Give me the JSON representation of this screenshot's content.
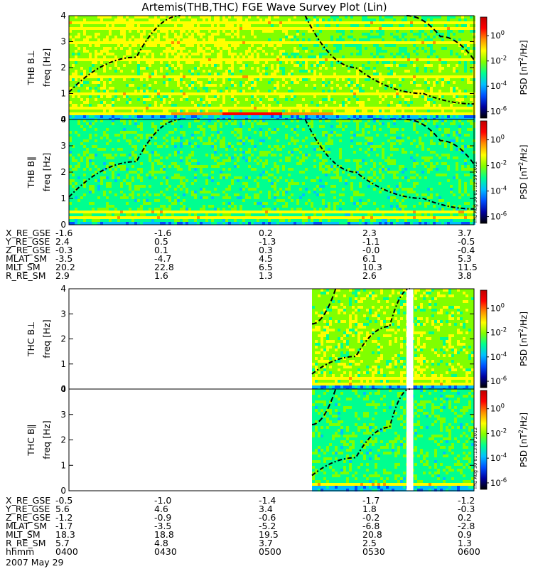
{
  "title": "Artemis(THB,THC) FGE Wave Survey Plot (Lin)",
  "date": "2007 May 29",
  "colors": {
    "background": "#ffffff",
    "curve": "#000000",
    "gap": "#ffffff"
  },
  "colorbar": {
    "label_prefix": "PSD ",
    "label_units": "[nT",
    "label_units_sup": "2",
    "label_units_tail": "/Hz]",
    "ticks": [
      {
        "base": "10",
        "exp": "0",
        "value": 1
      },
      {
        "base": "10",
        "exp": "-2",
        "value": 0.01
      },
      {
        "base": "10",
        "exp": "-4",
        "value": 0.0001
      },
      {
        "base": "10",
        "exp": "-6",
        "value": 1e-06
      }
    ],
    "scale": "log",
    "range": [
      3e-07,
      30
    ],
    "colormap": [
      "#000000",
      "#0000a0",
      "#0050ff",
      "#00c0ff",
      "#00ff90",
      "#80ff00",
      "#ffff00",
      "#ff9000",
      "#ff0000",
      "#c00000"
    ]
  },
  "stamps": [
    "Thu Aug 30 01:12:59 2012",
    "Thu Aug 30 01:13:00 2012"
  ],
  "ephemeris_top": {
    "rows": [
      {
        "label": "X_RE_GSE",
        "values": [
          "-1.6",
          "-1.6",
          "0.2",
          "2.3",
          "3.7"
        ]
      },
      {
        "label": "Y_RE_GSE",
        "values": [
          "2.4",
          "0.5",
          "-1.3",
          "-1.1",
          "-0.5"
        ]
      },
      {
        "label": "Z_RE_GSE",
        "values": [
          "-0.3",
          "0.1",
          "0.3",
          "-0.0",
          "-0.4"
        ]
      },
      {
        "label": "MLAT_SM",
        "values": [
          "-3.5",
          "-4.7",
          "4.5",
          "6.1",
          "5.3"
        ]
      },
      {
        "label": "MLT_SM",
        "values": [
          "20.2",
          "22.8",
          "6.5",
          "10.3",
          "11.5"
        ]
      },
      {
        "label": "R_RE_SM",
        "values": [
          "2.9",
          "1.6",
          "1.3",
          "2.6",
          "3.8"
        ]
      }
    ]
  },
  "ephemeris_bottom": {
    "rows": [
      {
        "label": "X_RE_GSE",
        "values": [
          "-0.5",
          "-1.0",
          "-1.4",
          "-1.7",
          "-1.2"
        ]
      },
      {
        "label": "Y_RE_GSE",
        "values": [
          "5.6",
          "4.6",
          "3.4",
          "1.8",
          "-0.3"
        ]
      },
      {
        "label": "Z_RE_GSE",
        "values": [
          "-1.2",
          "-0.9",
          "-0.6",
          "-0.2",
          "0.2"
        ]
      },
      {
        "label": "MLAT_SM",
        "values": [
          "-1.7",
          "-3.5",
          "-5.2",
          "-6.8",
          "-2.8"
        ]
      },
      {
        "label": "MLT_SM",
        "values": [
          "18.3",
          "18.8",
          "19.5",
          "20.8",
          "0.9"
        ]
      },
      {
        "label": "R_RE_SM",
        "values": [
          "5.7",
          "4.8",
          "3.7",
          "2.5",
          "1.3"
        ]
      },
      {
        "label": "hhmm",
        "values": [
          "0400",
          "0430",
          "0500",
          "0530",
          "0600"
        ]
      }
    ]
  },
  "chart_data": [
    {
      "type": "heatmap",
      "panel": "THB B⊥",
      "ylabel_top": "THB B⊥",
      "ylabel": "freq [Hz]",
      "yticks": [
        "0",
        "1",
        "2",
        "3",
        "4"
      ],
      "ylim": [
        0,
        4
      ],
      "x_time": [
        "0400",
        "0600"
      ],
      "data_interval": [
        "0400",
        "0600"
      ],
      "bands_hz": [
        0.23,
        0.45,
        1.0,
        1.65,
        2.35,
        2.95,
        3.55,
        3.75
      ],
      "curves": [
        {
          "style": "dash-dot",
          "points": [
            [
              "0400",
              1.05
            ],
            [
              "0420",
              2.4
            ],
            [
              "0433",
              4.0
            ]
          ]
        },
        {
          "style": "dash-dot",
          "points": [
            [
              "0510",
              4.0
            ],
            [
              "0525",
              2.0
            ],
            [
              "0545",
              1.0
            ],
            [
              "0600",
              0.6
            ]
          ]
        },
        {
          "style": "dashed",
          "points": [
            [
              "0540",
              4.0
            ],
            [
              "0550",
              3.2
            ],
            [
              "0600",
              2.3
            ]
          ]
        }
      ]
    },
    {
      "type": "heatmap",
      "panel": "THB B∥",
      "ylabel_top": "THB B∥",
      "ylabel": "freq [Hz]",
      "yticks": [
        "0",
        "1",
        "2",
        "3",
        "4"
      ],
      "ylim": [
        0,
        4
      ],
      "x_time": [
        "0400",
        "0600"
      ],
      "data_interval": [
        "0400",
        "0600"
      ],
      "bands_hz": [
        0.3,
        0.5
      ],
      "curves": [
        {
          "style": "dash-dot",
          "points": [
            [
              "0400",
              1.05
            ],
            [
              "0420",
              2.4
            ],
            [
              "0433",
              4.0
            ]
          ]
        },
        {
          "style": "dash-dot",
          "points": [
            [
              "0510",
              4.0
            ],
            [
              "0525",
              2.0
            ],
            [
              "0545",
              1.0
            ],
            [
              "0600",
              0.6
            ]
          ]
        },
        {
          "style": "dashed",
          "points": [
            [
              "0540",
              4.0
            ],
            [
              "0550",
              3.2
            ],
            [
              "0600",
              2.3
            ]
          ]
        }
      ]
    },
    {
      "type": "heatmap",
      "panel": "THC B⊥",
      "ylabel_top": "THC B⊥",
      "ylabel": "freq [Hz]",
      "yticks": [
        "0",
        "1",
        "2",
        "3",
        "4"
      ],
      "ylim": [
        0,
        4
      ],
      "x_time": [
        "0400",
        "0600"
      ],
      "data_interval": [
        "0512",
        "0600"
      ],
      "gap": [
        "0540",
        "0542"
      ],
      "bands_hz": [
        0.22,
        0.45
      ],
      "curves": [
        {
          "style": "dash-dot",
          "points": [
            [
              "0512",
              0.6
            ],
            [
              "0525",
              1.3
            ],
            [
              "0535",
              2.5
            ],
            [
              "0541",
              4.0
            ]
          ]
        },
        {
          "style": "dashed",
          "points": [
            [
              "0512",
              2.6
            ],
            [
              "0519",
              4.0
            ]
          ]
        }
      ]
    },
    {
      "type": "heatmap",
      "panel": "THC B∥",
      "ylabel_top": "THC B∥",
      "ylabel": "freq [Hz]",
      "yticks": [
        "0",
        "1",
        "2",
        "3",
        "4"
      ],
      "ylim": [
        0,
        4
      ],
      "x_time": [
        "0400",
        "0600"
      ],
      "data_interval": [
        "0512",
        "0600"
      ],
      "gap": [
        "0540",
        "0542"
      ],
      "bands_hz": [
        0.3
      ],
      "curves": [
        {
          "style": "dash-dot",
          "points": [
            [
              "0512",
              0.6
            ],
            [
              "0525",
              1.3
            ],
            [
              "0535",
              2.5
            ],
            [
              "0541",
              4.0
            ]
          ]
        },
        {
          "style": "dashed",
          "points": [
            [
              "0512",
              2.6
            ],
            [
              "0519",
              4.0
            ]
          ]
        }
      ]
    }
  ]
}
